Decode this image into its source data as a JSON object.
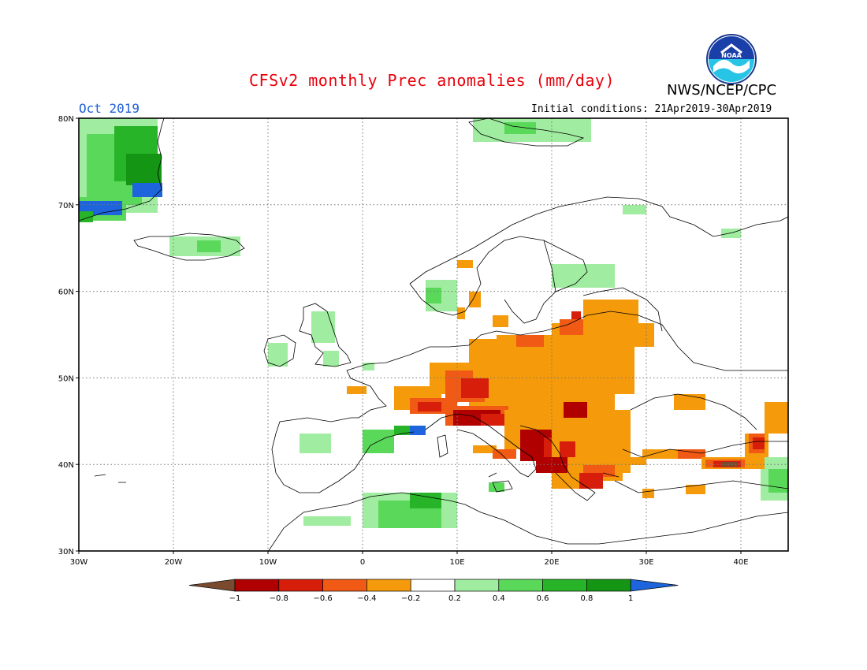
{
  "header": {
    "title": "CFSv2 monthly Prec anomalies (mm/day)",
    "month": "Oct 2019",
    "initial_conditions": "Initial conditions: 21Apr2019-30Apr2019",
    "agency": "NWS/NCEP/CPC",
    "logo_text": "NOAA"
  },
  "axes": {
    "lat_labels": [
      "80N",
      "70N",
      "60N",
      "50N",
      "40N",
      "30N"
    ],
    "lon_labels": [
      "30W",
      "20W",
      "10W",
      "0",
      "10E",
      "20E",
      "30E",
      "40E"
    ]
  },
  "colorbar": {
    "tick_labels": [
      "-1",
      "-0.8",
      "-0.6",
      "-0.4",
      "-0.2",
      "0.2",
      "0.4",
      "0.6",
      "0.8",
      "1"
    ],
    "colors": {
      "lt_m1": "#7a4a2e",
      "m1_m08": "#b00000",
      "m08_m06": "#d61e0a",
      "m06_m04": "#f05a14",
      "m04_m02": "#f59a0a",
      "m02_02": "#ffffff",
      "p02_04": "#a0eca0",
      "p04_06": "#5ad85a",
      "p06_08": "#28b428",
      "p08_1": "#149614",
      "gt_1": "#1e64dc"
    }
  },
  "map": {
    "extent": {
      "lon": [
        -30,
        45
      ],
      "lat": [
        30,
        80
      ]
    },
    "land_color": "#000000",
    "grid": "dotted"
  }
}
